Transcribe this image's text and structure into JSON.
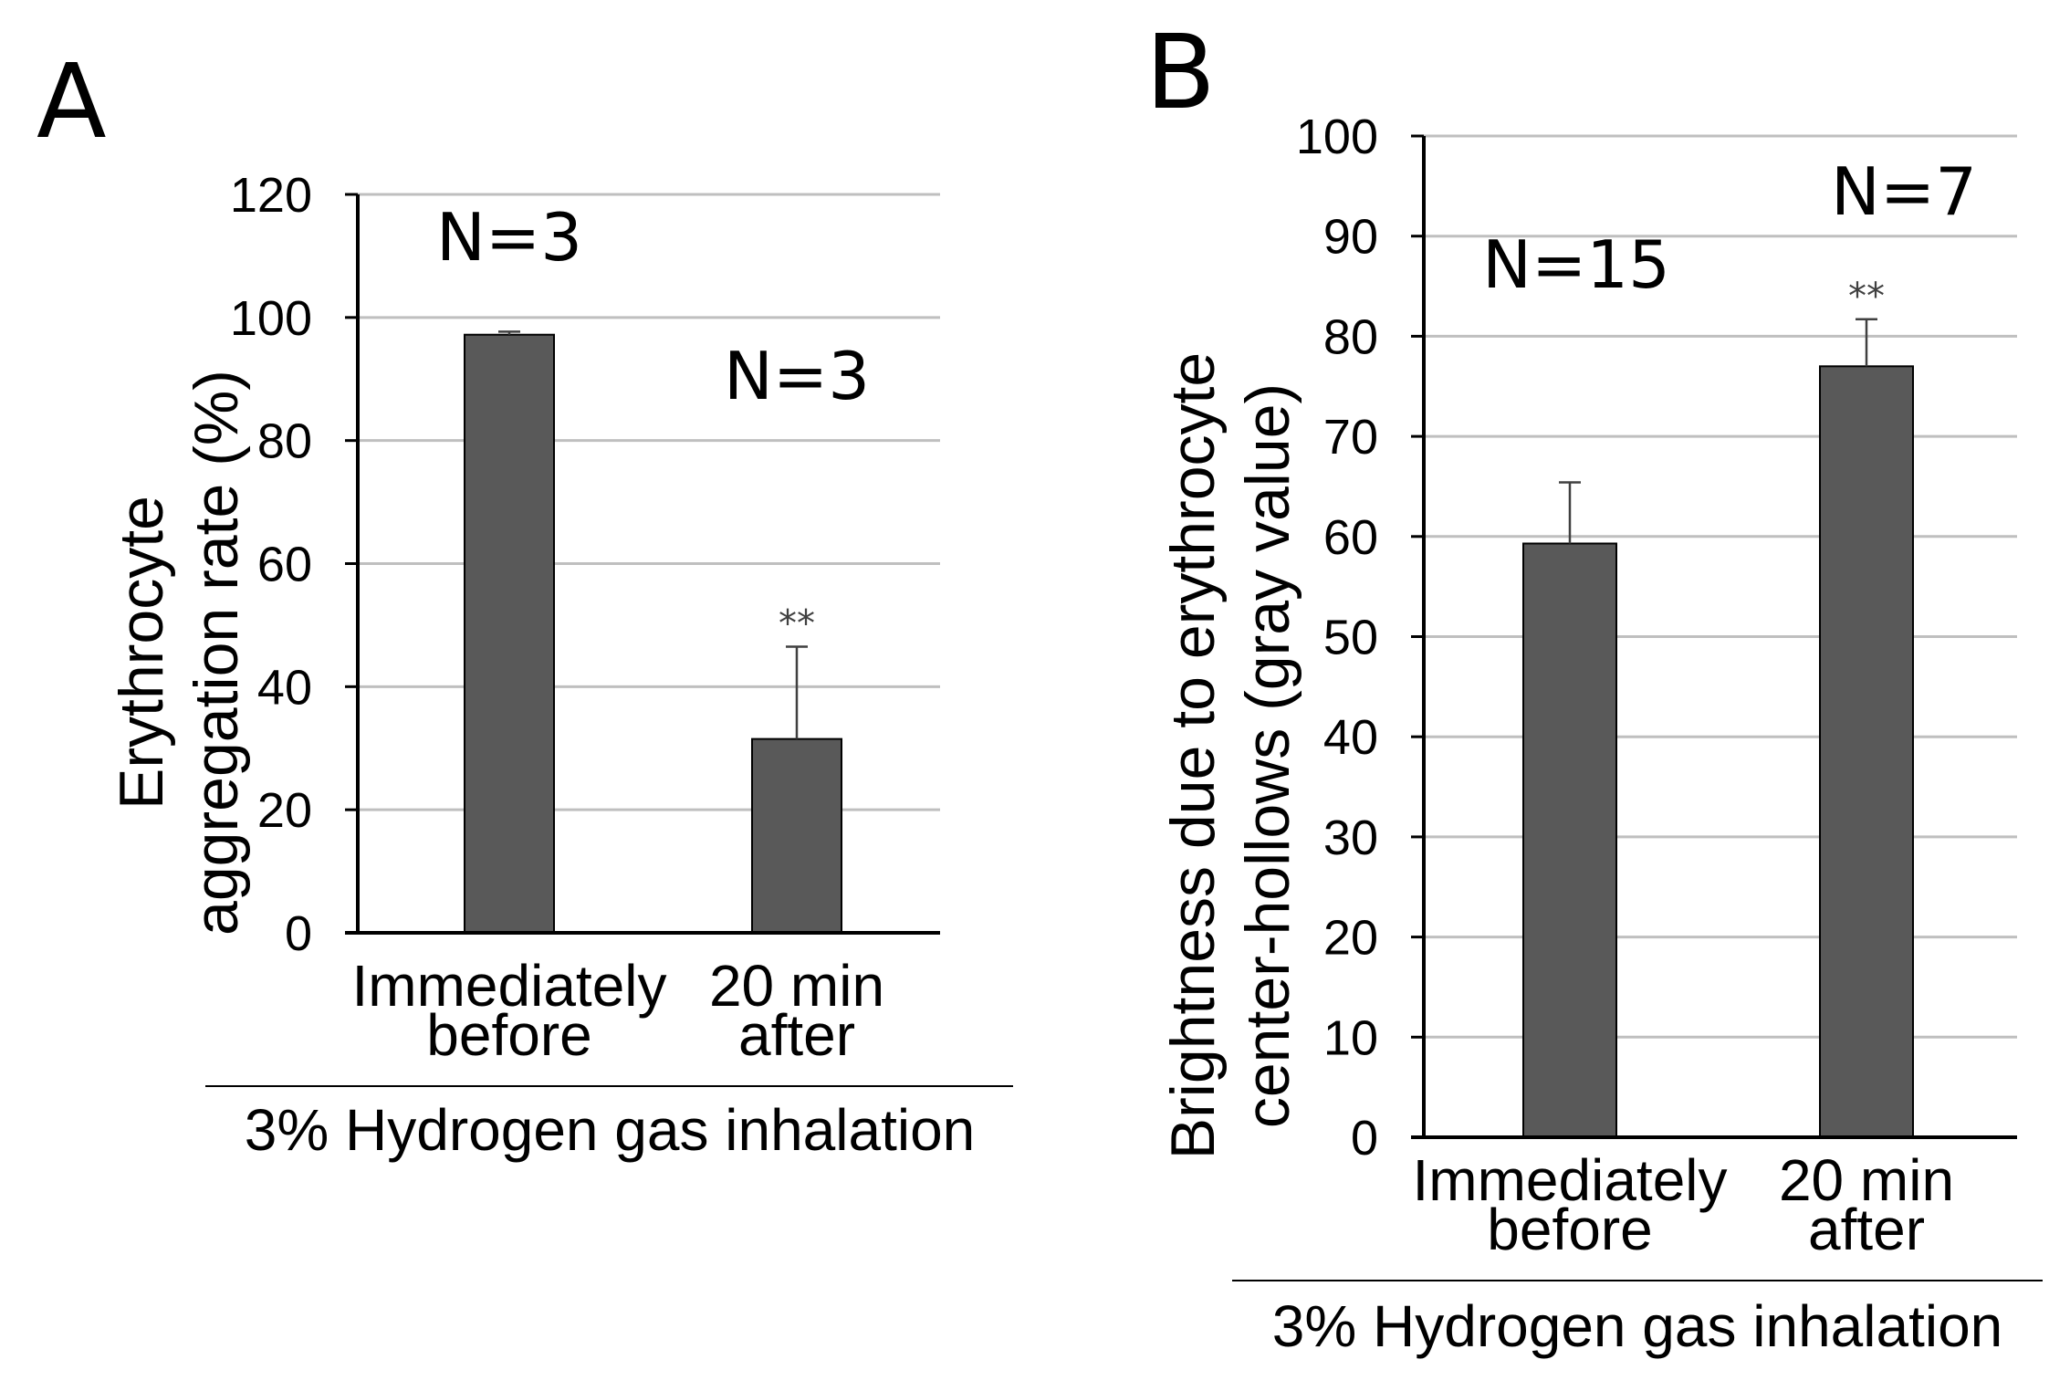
{
  "colors": {
    "bar": "#595959",
    "grid": "#bfbfbf",
    "axis": "#000000"
  },
  "chart_data": [
    {
      "panel": "A",
      "type": "bar",
      "categories": [
        [
          "Immediately",
          "before"
        ],
        [
          "20 min",
          "after"
        ]
      ],
      "values": [
        97.2,
        31.5
      ],
      "error": [
        0.5,
        15
      ],
      "n_labels": [
        "N=3",
        "N=3"
      ],
      "significance": [
        "",
        "**"
      ],
      "ylabel": [
        "Erythrocyte",
        "aggregation rate (%)"
      ],
      "xlabel": "3% Hydrogen gas inhalation",
      "ylim": [
        0,
        120
      ],
      "yticks": [
        0,
        20,
        40,
        60,
        80,
        100,
        120
      ],
      "grid": true,
      "legend": "none"
    },
    {
      "panel": "B",
      "type": "bar",
      "categories": [
        [
          "Immediately",
          "before"
        ],
        [
          "20 min",
          "after"
        ]
      ],
      "values": [
        59.3,
        77
      ],
      "error": [
        6.1,
        4.7
      ],
      "n_labels": [
        "N=15",
        "N=7"
      ],
      "significance": [
        "",
        "**"
      ],
      "ylabel": [
        "Brightness due to erythrocyte",
        "center-hollows (gray value)"
      ],
      "xlabel": "3% Hydrogen gas inhalation",
      "ylim": [
        0,
        100
      ],
      "yticks": [
        0,
        10,
        20,
        30,
        40,
        50,
        60,
        70,
        80,
        90,
        100
      ],
      "grid": true,
      "legend": "none"
    }
  ]
}
